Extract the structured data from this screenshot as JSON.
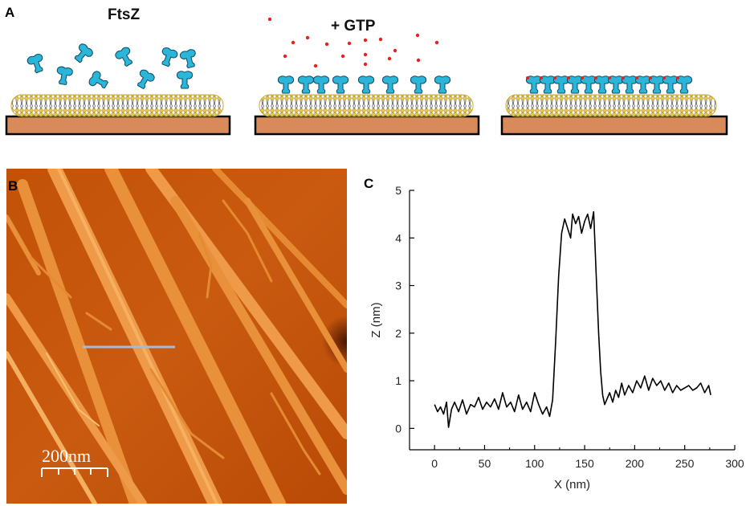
{
  "panels": {
    "a": {
      "letter": "A",
      "ftsz_label": "FtsZ",
      "gtp_label": "+ GTP",
      "colors": {
        "protein": "#2bb5d8",
        "gtp_dot": "#e82020",
        "substrate": "#d98a5a",
        "lipid_head": "#e8c84a",
        "substrate_border": "#000000"
      }
    },
    "b": {
      "letter": "B",
      "scale_label": "200nm",
      "colors": {
        "background": "#c9580c",
        "fiber": "#f0a050",
        "line_cut": "#a8b8d8"
      }
    },
    "c": {
      "letter": "C"
    }
  },
  "chart_data": {
    "type": "line",
    "xlabel": "X (nm)",
    "ylabel": "Z (nm)",
    "xlim": [
      -25,
      300
    ],
    "ylim": [
      -0.45,
      5
    ],
    "xticks": [
      0,
      50,
      100,
      150,
      200,
      250,
      300
    ],
    "yticks": [
      0,
      1,
      2,
      3,
      4,
      5
    ],
    "x": [
      0,
      3,
      6,
      9,
      12,
      14,
      17,
      20,
      24,
      28,
      32,
      36,
      40,
      44,
      48,
      52,
      56,
      60,
      64,
      68,
      72,
      76,
      80,
      84,
      88,
      92,
      96,
      100,
      104,
      108,
      112,
      115,
      118,
      121,
      124,
      127,
      130,
      133,
      136,
      138,
      141,
      144,
      147,
      150,
      153,
      156,
      159,
      162,
      164,
      166,
      168,
      170,
      172,
      175,
      178,
      181,
      184,
      187,
      190,
      194,
      198,
      202,
      206,
      210,
      214,
      218,
      222,
      226,
      230,
      234,
      238,
      242,
      246,
      250,
      254,
      258,
      262,
      266,
      270,
      274,
      276
    ],
    "y": [
      0.5,
      0.35,
      0.45,
      0.3,
      0.55,
      0.02,
      0.4,
      0.55,
      0.35,
      0.6,
      0.3,
      0.5,
      0.45,
      0.65,
      0.4,
      0.55,
      0.45,
      0.62,
      0.4,
      0.75,
      0.45,
      0.55,
      0.35,
      0.7,
      0.4,
      0.55,
      0.35,
      0.75,
      0.5,
      0.3,
      0.45,
      0.25,
      0.6,
      1.8,
      3.2,
      4.1,
      4.4,
      4.2,
      4.0,
      4.5,
      4.3,
      4.45,
      4.1,
      4.35,
      4.5,
      4.2,
      4.55,
      3.0,
      2.0,
      1.2,
      0.7,
      0.5,
      0.6,
      0.75,
      0.55,
      0.8,
      0.65,
      0.95,
      0.7,
      0.9,
      0.75,
      1.0,
      0.85,
      1.1,
      0.8,
      1.05,
      0.9,
      1.0,
      0.8,
      0.95,
      0.75,
      0.9,
      0.8,
      0.85,
      0.9,
      0.8,
      0.85,
      0.95,
      0.75,
      0.9,
      0.7
    ]
  }
}
